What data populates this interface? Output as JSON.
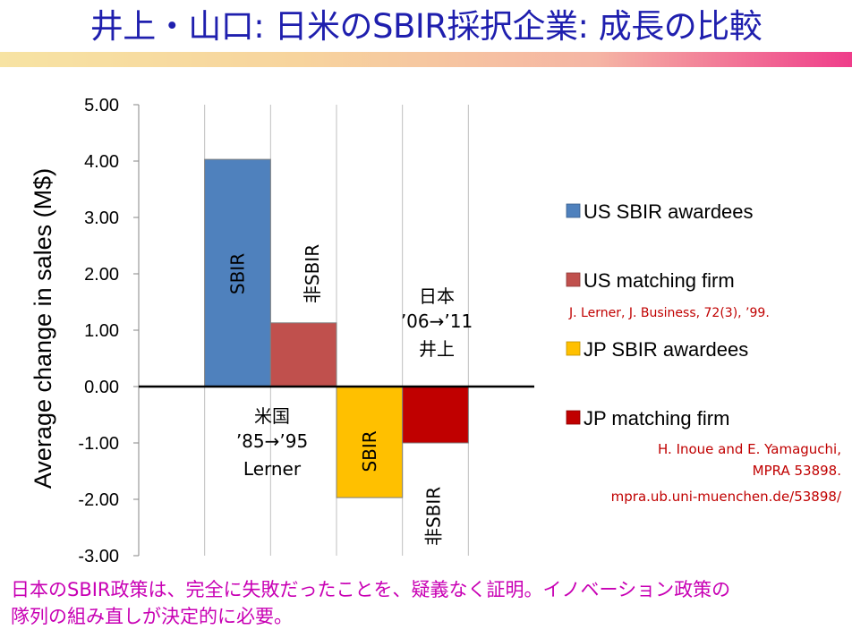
{
  "slide": {
    "title": "井上・山口: 日米のSBIR採択企業: 成長の比較",
    "conclusion_line1": "日本のSBIR政策は、完全に失敗だったことを、疑義なく証明。イノベーション政策の",
    "conclusion_line2": "隊列の組み直しが決定的に必要。"
  },
  "chart_data": {
    "type": "bar",
    "ylabel": "Average change in sales (M$)",
    "ylim": [
      -3,
      5
    ],
    "y_ticks": [
      "5.00",
      "4.00",
      "3.00",
      "2.00",
      "1.00",
      "0.00",
      "-1.00",
      "-2.00",
      "-3.00"
    ],
    "grid": "vertical gridlines only",
    "series": [
      {
        "name": "US SBIR awardees",
        "color": "#4f81bd",
        "value": 4.03,
        "bar_label": "SBIR"
      },
      {
        "name": "US matching firm",
        "color": "#c0504d",
        "value": 1.13,
        "bar_label": "非SBIR"
      },
      {
        "name": "JP SBIR awardees",
        "color": "#ffc000",
        "value": -1.97,
        "bar_label": "SBIR"
      },
      {
        "name": "JP matching firm",
        "color": "#c00000",
        "value": -1.0,
        "bar_label": "非SBIR"
      }
    ],
    "annotations": {
      "us_group": [
        "米国",
        "’85→’95",
        "Lerner"
      ],
      "jp_group": [
        "日本",
        "’06→’11",
        "井上"
      ]
    },
    "legend_position": "right",
    "citations": {
      "us": "J. Lerner, J. Business, 72(3), ’99.",
      "jp": [
        "H. Inoue and E. Yamaguchi,",
        "MPRA 53898.",
        "mpra.ub.uni-muenchen.de/53898/"
      ]
    },
    "citation_color": "#c00000"
  }
}
